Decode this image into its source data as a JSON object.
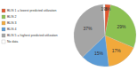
{
  "chart_data": {
    "type": "pie",
    "categories": [
      "BLIS 1 = lowest predicted utilization",
      "BLIS 2",
      "BLIS 3",
      "BLIS 4",
      "BLIS 5 = highest predicted utilization",
      "No data"
    ],
    "values": [
      3,
      29,
      17,
      15,
      37,
      1
    ],
    "value_labels": [
      "3%",
      "29%",
      "17%",
      "15%",
      "37%",
      "1%"
    ],
    "colors": [
      "#e4572e",
      "#8cc152",
      "#f2a93b",
      "#5b9bd5",
      "#a5a5a5",
      "#ffffff"
    ],
    "data_labels": true,
    "legend": "left"
  }
}
